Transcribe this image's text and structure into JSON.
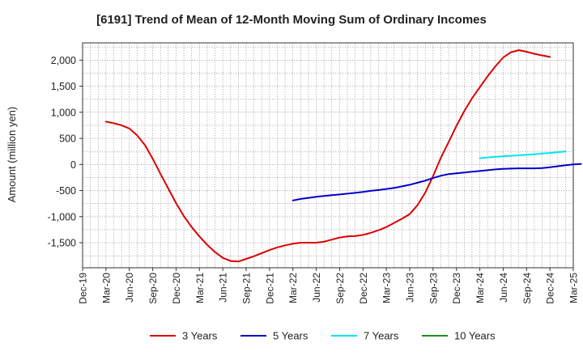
{
  "chart_data": {
    "type": "line",
    "title": "[6191]  Trend of Mean of 12-Month Moving Sum of Ordinary Incomes",
    "xlabel": "",
    "ylabel": "Amount (million yen)",
    "ylim": [
      -1980,
      2330
    ],
    "yticks": [
      -1500,
      -1000,
      -500,
      0,
      500,
      1000,
      1500,
      2000
    ],
    "ytick_labels": [
      "-1,500",
      "-1,000",
      "-500",
      "0",
      "500",
      "1,000",
      "1,500",
      "2,000"
    ],
    "x_start": "Dec-19",
    "x_end": "Mar-25",
    "x_tick_labels": [
      "Dec-19",
      "Mar-20",
      "Jun-20",
      "Sep-20",
      "Dec-20",
      "Mar-21",
      "Jun-21",
      "Sep-21",
      "Dec-21",
      "Mar-22",
      "Jun-22",
      "Sep-22",
      "Dec-22",
      "Mar-23",
      "Jun-23",
      "Sep-23",
      "Dec-23",
      "Mar-24",
      "Jun-24",
      "Sep-24",
      "Dec-24",
      "Mar-25"
    ],
    "grid": true,
    "legend_position": "bottom",
    "series": [
      {
        "name": "3 Years",
        "color": "#dd0000",
        "start": "Mar-20",
        "values": [
          820,
          790,
          750,
          690,
          560,
          370,
          110,
          -180,
          -460,
          -740,
          -990,
          -1200,
          -1380,
          -1540,
          -1680,
          -1790,
          -1850,
          -1860,
          -1810,
          -1760,
          -1700,
          -1640,
          -1590,
          -1550,
          -1520,
          -1500,
          -1500,
          -1500,
          -1480,
          -1440,
          -1400,
          -1380,
          -1370,
          -1350,
          -1310,
          -1260,
          -1200,
          -1120,
          -1040,
          -950,
          -780,
          -540,
          -220,
          130,
          430,
          740,
          1020,
          1270,
          1480,
          1690,
          1880,
          2050,
          2150,
          2190,
          2160,
          2120,
          2090,
          2060
        ]
      },
      {
        "name": "5 Years",
        "color": "#0000cc",
        "start": "Mar-22",
        "values": [
          -690,
          -660,
          -640,
          -620,
          -605,
          -590,
          -575,
          -560,
          -545,
          -525,
          -505,
          -490,
          -470,
          -450,
          -420,
          -390,
          -350,
          -310,
          -260,
          -215,
          -185,
          -170,
          -155,
          -140,
          -125,
          -110,
          -95,
          -85,
          -80,
          -75,
          -75,
          -75,
          -70,
          -55,
          -35,
          -15,
          0,
          10
        ]
      },
      {
        "name": "7 Years",
        "color": "#00e5ee",
        "start": "Mar-24",
        "values": [
          120,
          135,
          145,
          155,
          165,
          175,
          185,
          195,
          210,
          220,
          235,
          250
        ]
      },
      {
        "name": "10 Years",
        "color": "#228b22",
        "start": "",
        "values": []
      }
    ]
  }
}
